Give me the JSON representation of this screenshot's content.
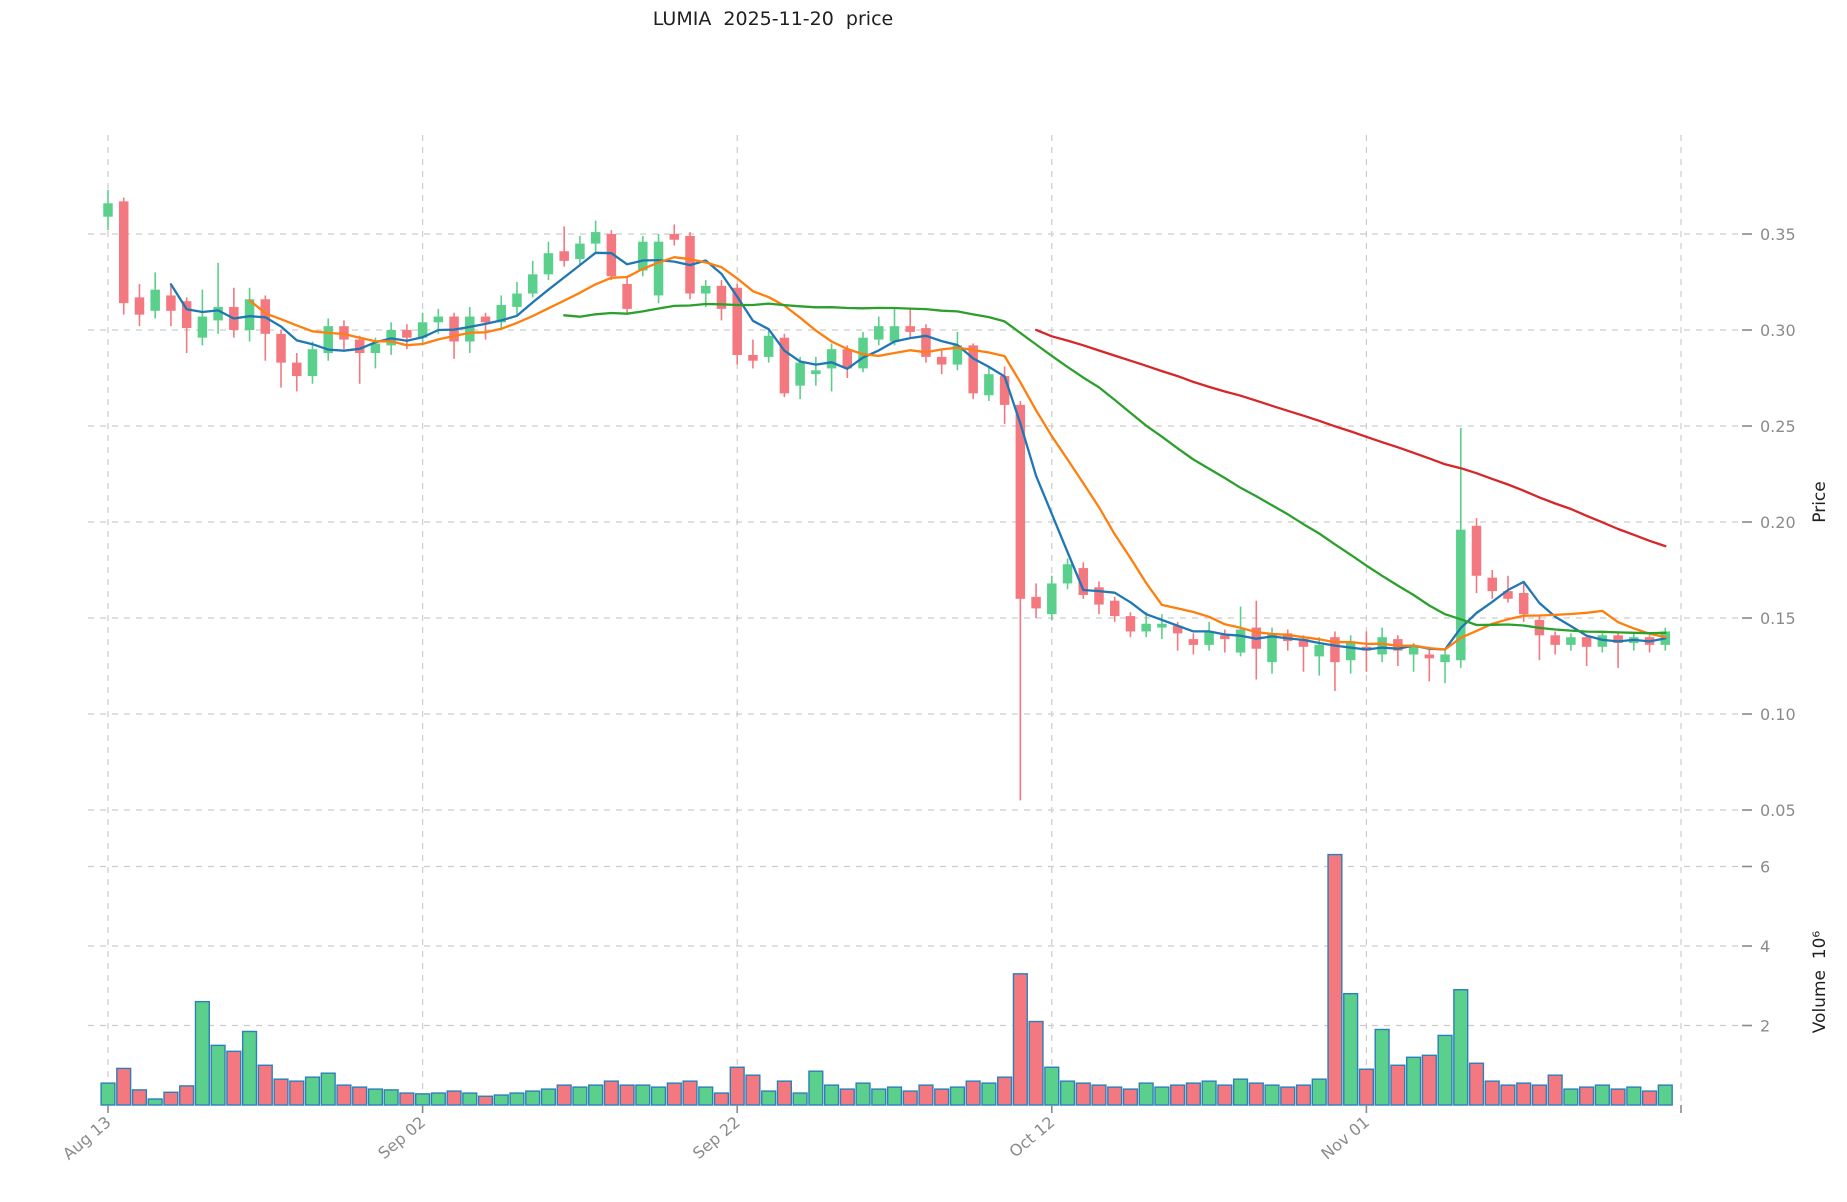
{
  "chart_data": {
    "type": "candlestick",
    "title": "LUMIA  2025-11-20  price",
    "ylabel_price": "Price",
    "ylabel_volume": "Volume  10⁶",
    "legend_position": "none",
    "grid": true,
    "x_tick_labels": [
      "Aug 13",
      "Sep 02",
      "Sep 22",
      "Oct 12",
      "Nov 01"
    ],
    "x_tick_indices": [
      0,
      20,
      40,
      60,
      80
    ],
    "x_gridline_indices": [
      0,
      20,
      40,
      60,
      80,
      100
    ],
    "price_ticks": [
      {
        "label": "0.35",
        "value": 0.35
      },
      {
        "label": "0.30",
        "value": 0.3
      },
      {
        "label": "0.25",
        "value": 0.25
      },
      {
        "label": "0.20",
        "value": 0.2
      },
      {
        "label": "0.15",
        "value": 0.15
      },
      {
        "label": "0.10",
        "value": 0.1
      },
      {
        "label": "0.05",
        "value": 0.05
      }
    ],
    "volume_ticks": [
      {
        "label": "2",
        "value": 2
      },
      {
        "label": "4",
        "value": 4
      },
      {
        "label": "6",
        "value": 6
      }
    ],
    "price_ylim": [
      0.034,
      0.402
    ],
    "volume_ylim": [
      0,
      6.55
    ],
    "colors": {
      "up": "#5bd08c",
      "down": "#f4787f",
      "volume_edge": "#2d7fb8",
      "grid": "#cccccc",
      "tick_text": "#8b8b8b",
      "title_text": "#1f1f1f",
      "ma_colors": [
        "#1f77b4",
        "#ff7f0e",
        "#2ca02c",
        "#d62728"
      ]
    },
    "ma_lines": [
      {
        "name": "MA5",
        "window": 5
      },
      {
        "name": "MA10",
        "window": 10
      },
      {
        "name": "MA30",
        "window": 30
      },
      {
        "name": "MA60",
        "window": 60
      }
    ],
    "dates": [
      "2025-08-13",
      "2025-08-14",
      "2025-08-15",
      "2025-08-16",
      "2025-08-17",
      "2025-08-18",
      "2025-08-19",
      "2025-08-20",
      "2025-08-21",
      "2025-08-22",
      "2025-08-23",
      "2025-08-24",
      "2025-08-25",
      "2025-08-26",
      "2025-08-27",
      "2025-08-28",
      "2025-08-29",
      "2025-08-30",
      "2025-08-31",
      "2025-09-01",
      "2025-09-02",
      "2025-09-03",
      "2025-09-04",
      "2025-09-05",
      "2025-09-06",
      "2025-09-07",
      "2025-09-08",
      "2025-09-09",
      "2025-09-10",
      "2025-09-11",
      "2025-09-12",
      "2025-09-13",
      "2025-09-14",
      "2025-09-15",
      "2025-09-16",
      "2025-09-17",
      "2025-09-18",
      "2025-09-19",
      "2025-09-20",
      "2025-09-21",
      "2025-09-22",
      "2025-09-23",
      "2025-09-24",
      "2025-09-25",
      "2025-09-26",
      "2025-09-27",
      "2025-09-28",
      "2025-09-29",
      "2025-09-30",
      "2025-10-01",
      "2025-10-02",
      "2025-10-03",
      "2025-10-04",
      "2025-10-05",
      "2025-10-06",
      "2025-10-07",
      "2025-10-08",
      "2025-10-09",
      "2025-10-10",
      "2025-10-11",
      "2025-10-12",
      "2025-10-13",
      "2025-10-14",
      "2025-10-15",
      "2025-10-16",
      "2025-10-17",
      "2025-10-18",
      "2025-10-19",
      "2025-10-20",
      "2025-10-21",
      "2025-10-22",
      "2025-10-23",
      "2025-10-24",
      "2025-10-25",
      "2025-10-26",
      "2025-10-27",
      "2025-10-28",
      "2025-10-29",
      "2025-10-30",
      "2025-10-31",
      "2025-11-01",
      "2025-11-02",
      "2025-11-03",
      "2025-11-04",
      "2025-11-05",
      "2025-11-06",
      "2025-11-07",
      "2025-11-08",
      "2025-11-09",
      "2025-11-10",
      "2025-11-11",
      "2025-11-12",
      "2025-11-13",
      "2025-11-14",
      "2025-11-15",
      "2025-11-16",
      "2025-11-17",
      "2025-11-18",
      "2025-11-19",
      "2025-11-20"
    ],
    "ohlc": [
      [
        0.359,
        0.373,
        0.352,
        0.366
      ],
      [
        0.367,
        0.369,
        0.308,
        0.314
      ],
      [
        0.317,
        0.324,
        0.302,
        0.308
      ],
      [
        0.31,
        0.33,
        0.306,
        0.321
      ],
      [
        0.318,
        0.323,
        0.302,
        0.31
      ],
      [
        0.315,
        0.317,
        0.288,
        0.301
      ],
      [
        0.296,
        0.321,
        0.292,
        0.307
      ],
      [
        0.305,
        0.335,
        0.298,
        0.312
      ],
      [
        0.312,
        0.322,
        0.296,
        0.3
      ],
      [
        0.3,
        0.322,
        0.294,
        0.316
      ],
      [
        0.316,
        0.318,
        0.284,
        0.298
      ],
      [
        0.298,
        0.3,
        0.27,
        0.283
      ],
      [
        0.283,
        0.288,
        0.268,
        0.276
      ],
      [
        0.276,
        0.294,
        0.272,
        0.29
      ],
      [
        0.288,
        0.306,
        0.284,
        0.302
      ],
      [
        0.302,
        0.305,
        0.29,
        0.295
      ],
      [
        0.295,
        0.297,
        0.272,
        0.288
      ],
      [
        0.288,
        0.296,
        0.28,
        0.293
      ],
      [
        0.292,
        0.304,
        0.287,
        0.3
      ],
      [
        0.3,
        0.303,
        0.29,
        0.296
      ],
      [
        0.296,
        0.309,
        0.292,
        0.304
      ],
      [
        0.304,
        0.311,
        0.298,
        0.307
      ],
      [
        0.307,
        0.309,
        0.285,
        0.294
      ],
      [
        0.294,
        0.312,
        0.288,
        0.307
      ],
      [
        0.307,
        0.309,
        0.295,
        0.304
      ],
      [
        0.304,
        0.318,
        0.3,
        0.313
      ],
      [
        0.312,
        0.325,
        0.308,
        0.319
      ],
      [
        0.319,
        0.336,
        0.317,
        0.329
      ],
      [
        0.329,
        0.346,
        0.326,
        0.34
      ],
      [
        0.341,
        0.354,
        0.333,
        0.336
      ],
      [
        0.337,
        0.349,
        0.334,
        0.345
      ],
      [
        0.345,
        0.357,
        0.34,
        0.351
      ],
      [
        0.35,
        0.352,
        0.326,
        0.328
      ],
      [
        0.324,
        0.328,
        0.308,
        0.311
      ],
      [
        0.331,
        0.349,
        0.328,
        0.346
      ],
      [
        0.318,
        0.35,
        0.314,
        0.346
      ],
      [
        0.35,
        0.355,
        0.344,
        0.347
      ],
      [
        0.349,
        0.351,
        0.316,
        0.319
      ],
      [
        0.319,
        0.326,
        0.312,
        0.323
      ],
      [
        0.323,
        0.326,
        0.305,
        0.311
      ],
      [
        0.322,
        0.324,
        0.282,
        0.287
      ],
      [
        0.287,
        0.295,
        0.28,
        0.284
      ],
      [
        0.286,
        0.3,
        0.283,
        0.297
      ],
      [
        0.296,
        0.298,
        0.265,
        0.267
      ],
      [
        0.271,
        0.286,
        0.264,
        0.283
      ],
      [
        0.277,
        0.286,
        0.271,
        0.279
      ],
      [
        0.28,
        0.293,
        0.268,
        0.29
      ],
      [
        0.29,
        0.292,
        0.275,
        0.28
      ],
      [
        0.28,
        0.299,
        0.278,
        0.296
      ],
      [
        0.295,
        0.307,
        0.292,
        0.302
      ],
      [
        0.294,
        0.312,
        0.292,
        0.302
      ],
      [
        0.302,
        0.311,
        0.296,
        0.299
      ],
      [
        0.301,
        0.303,
        0.283,
        0.286
      ],
      [
        0.286,
        0.29,
        0.277,
        0.282
      ],
      [
        0.282,
        0.299,
        0.279,
        0.292
      ],
      [
        0.292,
        0.293,
        0.264,
        0.267
      ],
      [
        0.266,
        0.281,
        0.263,
        0.277
      ],
      [
        0.276,
        0.281,
        0.251,
        0.261
      ],
      [
        0.261,
        0.263,
        0.055,
        0.16
      ],
      [
        0.161,
        0.168,
        0.15,
        0.155
      ],
      [
        0.152,
        0.172,
        0.149,
        0.168
      ],
      [
        0.168,
        0.181,
        0.165,
        0.178
      ],
      [
        0.176,
        0.179,
        0.16,
        0.162
      ],
      [
        0.166,
        0.169,
        0.152,
        0.157
      ],
      [
        0.159,
        0.161,
        0.148,
        0.151
      ],
      [
        0.151,
        0.153,
        0.14,
        0.143
      ],
      [
        0.143,
        0.153,
        0.14,
        0.147
      ],
      [
        0.145,
        0.152,
        0.139,
        0.147
      ],
      [
        0.146,
        0.148,
        0.133,
        0.142
      ],
      [
        0.139,
        0.142,
        0.131,
        0.136
      ],
      [
        0.136,
        0.148,
        0.133,
        0.143
      ],
      [
        0.141,
        0.144,
        0.132,
        0.139
      ],
      [
        0.132,
        0.156,
        0.13,
        0.144
      ],
      [
        0.145,
        0.159,
        0.118,
        0.134
      ],
      [
        0.127,
        0.145,
        0.121,
        0.142
      ],
      [
        0.142,
        0.144,
        0.133,
        0.138
      ],
      [
        0.139,
        0.141,
        0.122,
        0.135
      ],
      [
        0.13,
        0.14,
        0.12,
        0.136
      ],
      [
        0.14,
        0.143,
        0.112,
        0.127
      ],
      [
        0.128,
        0.141,
        0.121,
        0.137
      ],
      [
        0.135,
        0.143,
        0.122,
        0.133
      ],
      [
        0.131,
        0.145,
        0.127,
        0.14
      ],
      [
        0.139,
        0.141,
        0.125,
        0.133
      ],
      [
        0.131,
        0.137,
        0.122,
        0.135
      ],
      [
        0.131,
        0.135,
        0.117,
        0.129
      ],
      [
        0.127,
        0.134,
        0.116,
        0.131
      ],
      [
        0.128,
        0.249,
        0.124,
        0.196
      ],
      [
        0.198,
        0.202,
        0.163,
        0.172
      ],
      [
        0.171,
        0.175,
        0.16,
        0.164
      ],
      [
        0.164,
        0.172,
        0.158,
        0.16
      ],
      [
        0.163,
        0.168,
        0.148,
        0.152
      ],
      [
        0.149,
        0.151,
        0.128,
        0.141
      ],
      [
        0.141,
        0.143,
        0.131,
        0.136
      ],
      [
        0.136,
        0.142,
        0.133,
        0.14
      ],
      [
        0.14,
        0.141,
        0.125,
        0.135
      ],
      [
        0.135,
        0.143,
        0.132,
        0.141
      ],
      [
        0.141,
        0.142,
        0.124,
        0.137
      ],
      [
        0.137,
        0.142,
        0.133,
        0.14
      ],
      [
        0.14,
        0.141,
        0.132,
        0.136
      ],
      [
        0.136,
        0.145,
        0.133,
        0.143
      ]
    ],
    "volume": [
      0.55,
      0.92,
      0.38,
      0.15,
      0.32,
      0.48,
      2.6,
      1.5,
      1.35,
      1.85,
      1.0,
      0.65,
      0.6,
      0.7,
      0.8,
      0.5,
      0.45,
      0.4,
      0.38,
      0.3,
      0.28,
      0.3,
      0.35,
      0.3,
      0.22,
      0.25,
      0.3,
      0.35,
      0.4,
      0.5,
      0.45,
      0.5,
      0.6,
      0.5,
      0.5,
      0.45,
      0.55,
      0.6,
      0.45,
      0.3,
      0.95,
      0.75,
      0.35,
      0.6,
      0.3,
      0.85,
      0.5,
      0.4,
      0.55,
      0.4,
      0.45,
      0.35,
      0.5,
      0.4,
      0.45,
      0.6,
      0.55,
      0.7,
      3.3,
      2.1,
      0.95,
      0.6,
      0.55,
      0.5,
      0.45,
      0.4,
      0.55,
      0.45,
      0.5,
      0.55,
      0.6,
      0.5,
      0.65,
      0.55,
      0.5,
      0.45,
      0.5,
      0.65,
      6.3,
      2.8,
      0.9,
      1.9,
      1.0,
      1.2,
      1.25,
      1.75,
      2.9,
      1.05,
      0.6,
      0.5,
      0.55,
      0.5,
      0.75,
      0.4,
      0.45,
      0.5,
      0.4,
      0.45,
      0.35,
      0.5
    ]
  }
}
